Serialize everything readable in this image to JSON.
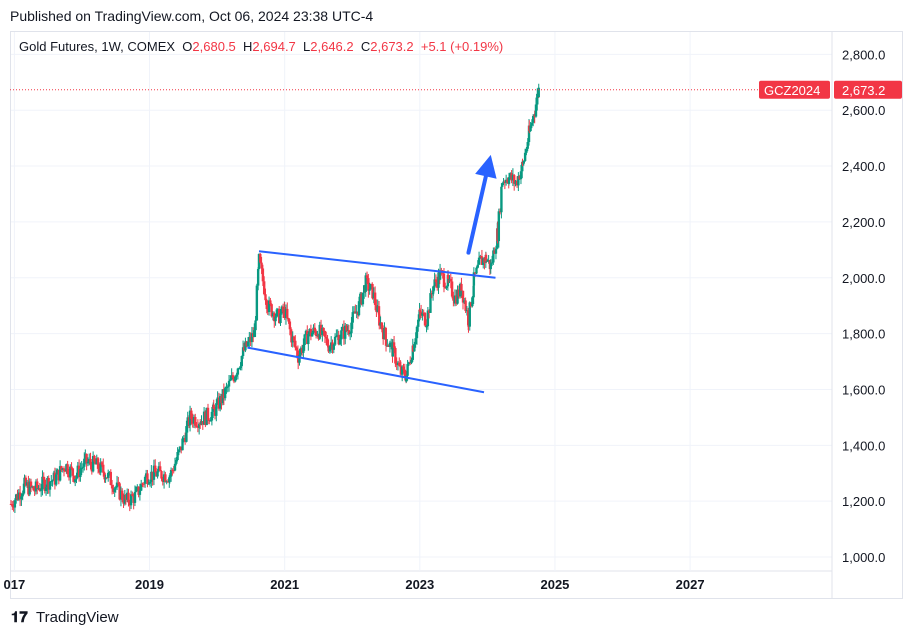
{
  "header": {
    "published": "Published on TradingView.com, Oct 06, 2024 23:38 UTC-4"
  },
  "legend": {
    "symbol": "Gold Futures, 1W, COMEX",
    "o_label": "O",
    "o_value": "2,680.5",
    "h_label": "H",
    "h_value": "2,694.7",
    "l_label": "L",
    "l_value": "2,646.2",
    "c_label": "C",
    "c_value": "2,673.2",
    "change": "+5.1 (+0.19%)"
  },
  "price_tag": {
    "symbol": "GCZ2024",
    "price": "2,673.2",
    "value": 2673.2,
    "color": "#f23645"
  },
  "footer": {
    "logo": "𝟏𝟕",
    "brand": "TradingView"
  },
  "colors": {
    "up": "#089981",
    "down": "#f23645",
    "trendline": "#2962ff",
    "grid": "#f0f3fa"
  },
  "chart_data": {
    "type": "candlestick",
    "interval": "1W",
    "y_ticks": [
      "1,000.0",
      "1,200.0",
      "1,400.0",
      "1,600.0",
      "1,800.0",
      "2,000.0",
      "2,200.0",
      "2,400.0",
      "2,600.0",
      "2,800.0"
    ],
    "y_tick_values": [
      1000,
      1200,
      1400,
      1600,
      1800,
      2000,
      2200,
      2400,
      2600,
      2800
    ],
    "x_ticks": [
      "017",
      "2019",
      "2021",
      "2023",
      "2025",
      "2027"
    ],
    "x_tick_values": [
      2017,
      2019,
      2021,
      2023,
      2025,
      2027
    ],
    "ylim": [
      950,
      2880
    ],
    "xlim": [
      2016.95,
      2029.1
    ],
    "series": [
      {
        "values": [
          [
            2016.95,
            1190
          ],
          [
            2017.15,
            1255
          ],
          [
            2017.3,
            1240
          ],
          [
            2017.45,
            1265
          ],
          [
            2017.6,
            1280
          ],
          [
            2017.75,
            1330
          ],
          [
            2017.9,
            1290
          ],
          [
            2018.05,
            1340
          ],
          [
            2018.2,
            1330
          ],
          [
            2018.35,
            1300
          ],
          [
            2018.5,
            1250
          ],
          [
            2018.65,
            1200
          ],
          [
            2018.8,
            1220
          ],
          [
            2018.95,
            1290
          ],
          [
            2019.1,
            1300
          ],
          [
            2019.3,
            1290
          ],
          [
            2019.45,
            1380
          ],
          [
            2019.6,
            1500
          ],
          [
            2019.75,
            1490
          ],
          [
            2019.95,
            1520
          ],
          [
            2020.1,
            1580
          ],
          [
            2020.25,
            1650
          ],
          [
            2020.4,
            1740
          ],
          [
            2020.55,
            1800
          ],
          [
            2020.62,
            2060
          ],
          [
            2020.75,
            1900
          ],
          [
            2020.9,
            1860
          ],
          [
            2021.0,
            1880
          ],
          [
            2021.1,
            1790
          ],
          [
            2021.2,
            1720
          ],
          [
            2021.35,
            1800
          ],
          [
            2021.5,
            1810
          ],
          [
            2021.65,
            1760
          ],
          [
            2021.8,
            1790
          ],
          [
            2021.95,
            1820
          ],
          [
            2022.1,
            1900
          ],
          [
            2022.2,
            1980
          ],
          [
            2022.3,
            1950
          ],
          [
            2022.4,
            1850
          ],
          [
            2022.5,
            1780
          ],
          [
            2022.6,
            1740
          ],
          [
            2022.72,
            1660
          ],
          [
            2022.8,
            1650
          ],
          [
            2022.9,
            1760
          ],
          [
            2023.0,
            1870
          ],
          [
            2023.1,
            1850
          ],
          [
            2023.2,
            1970
          ],
          [
            2023.3,
            2010
          ],
          [
            2023.42,
            1980
          ],
          [
            2023.52,
            1930
          ],
          [
            2023.62,
            1960
          ],
          [
            2023.72,
            1850
          ],
          [
            2023.8,
            1990
          ],
          [
            2023.9,
            2060
          ],
          [
            2023.98,
            2070
          ],
          [
            2024.05,
            2040
          ],
          [
            2024.15,
            2160
          ],
          [
            2024.22,
            2350
          ],
          [
            2024.32,
            2360
          ],
          [
            2024.42,
            2340
          ],
          [
            2024.52,
            2400
          ],
          [
            2024.62,
            2520
          ],
          [
            2024.7,
            2600
          ],
          [
            2024.76,
            2673.2
          ]
        ]
      }
    ],
    "trendlines": [
      {
        "x": [
          2020.62,
          2024.12
        ],
        "y": [
          2095,
          2000
        ]
      },
      {
        "x": [
          2020.45,
          2023.95
        ],
        "y": [
          1750,
          1590
        ]
      }
    ],
    "annotation_arrow": {
      "x": [
        2023.72,
        2024.05
      ],
      "y": [
        2090,
        2440
      ]
    },
    "last_price_line": 2673.2
  }
}
